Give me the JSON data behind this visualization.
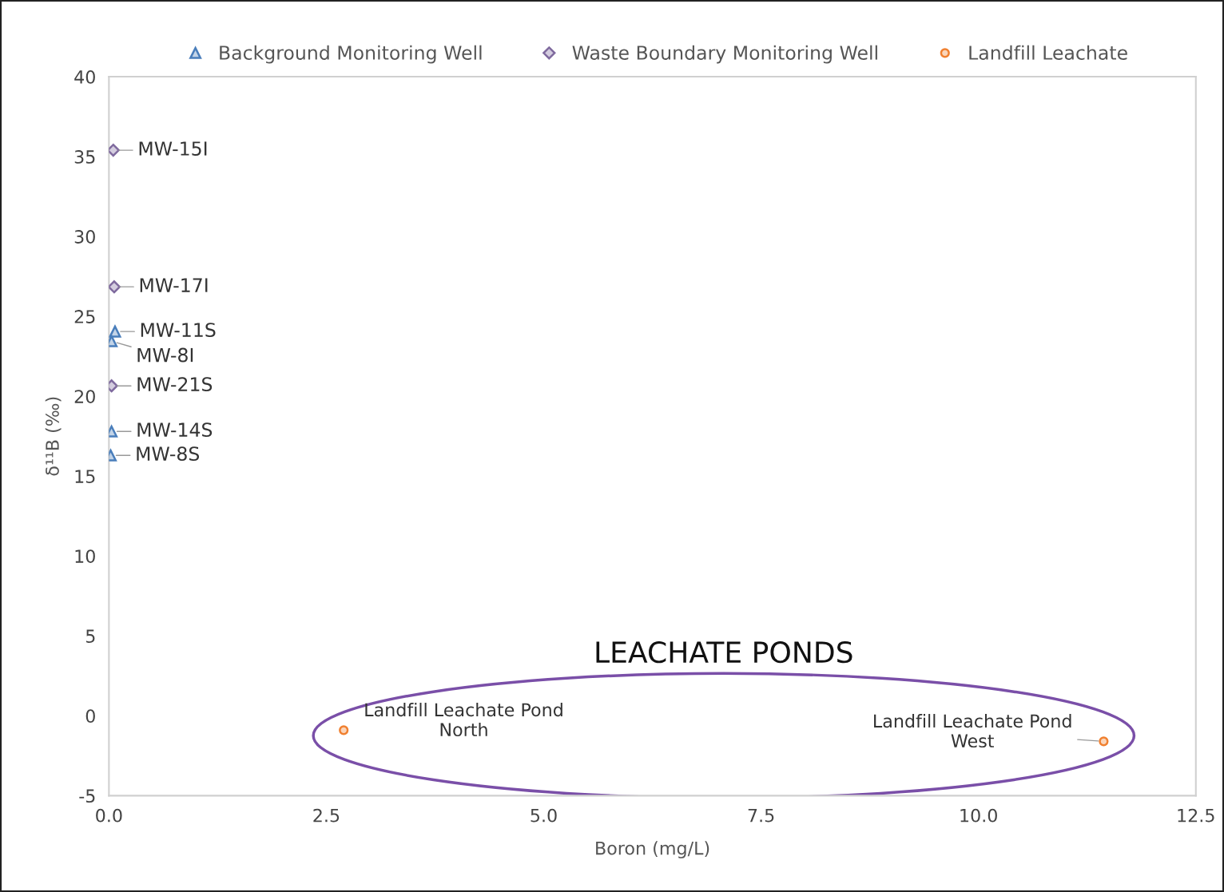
{
  "chart_data": {
    "type": "scatter",
    "xlabel": "Boron (mg/L)",
    "ylabel": "δ¹¹B (‰)",
    "xlim": [
      0,
      12.5
    ],
    "ylim": [
      -5,
      40
    ],
    "xticks": [
      {
        "value": 0,
        "label": "0.0"
      },
      2.5,
      {
        "value": 5,
        "label": "5.0"
      },
      7.5,
      {
        "value": 10,
        "label": "10.0"
      },
      12.5
    ],
    "yticks": [
      -5,
      0,
      5,
      10,
      15,
      20,
      25,
      30,
      35,
      40
    ],
    "grid": false,
    "legend": "top",
    "series": [
      {
        "name": "Background Monitoring Well",
        "color": "#4a7ebb",
        "marker": "triangle",
        "x": [
          0.07,
          0.03,
          0.03,
          0.02
        ],
        "values": [
          24.05,
          23.45,
          17.8,
          16.3
        ]
      },
      {
        "name": "Waste Boundary Monitoring Well",
        "color": "#7f6a9e",
        "marker": "diamond",
        "x": [
          0.05,
          0.06,
          0.03
        ],
        "values": [
          35.4,
          26.85,
          20.65
        ]
      },
      {
        "name": "Landfill Leachate",
        "color": "#f08030",
        "marker": "circle",
        "x": [
          2.7,
          11.44
        ],
        "values": [
          -0.9,
          -1.6
        ]
      }
    ],
    "annotations": [
      {
        "text": "MW-11S",
        "x": 0.07,
        "y": 24.05
      },
      {
        "text": "MW-8I",
        "x": 0.03,
        "y": 23.45
      },
      {
        "text": "MW-14S",
        "x": 0.03,
        "y": 17.8
      },
      {
        "text": "MW-8S",
        "x": 0.02,
        "y": 16.3
      },
      {
        "text": "MW-15I",
        "x": 0.05,
        "y": 35.4
      },
      {
        "text": "MW-17I",
        "x": 0.06,
        "y": 26.85
      },
      {
        "text": "MW-21S",
        "x": 0.03,
        "y": 20.65
      },
      {
        "text": "Landfill Leachate Pond\nNorth",
        "x": 2.7,
        "y": -0.9
      },
      {
        "text": "Landfill Leachate Pond\nWest",
        "x": 11.44,
        "y": -1.6
      },
      "LEACHATE PONDS"
    ]
  }
}
